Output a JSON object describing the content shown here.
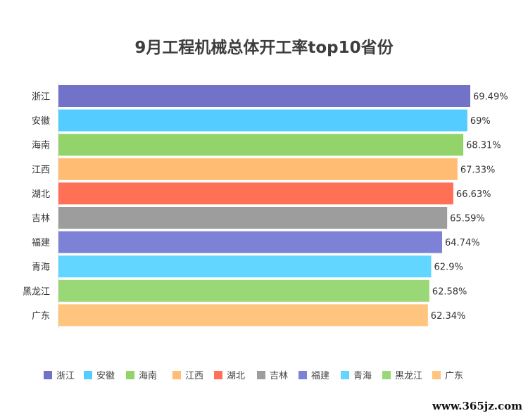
{
  "chart_data": {
    "type": "bar",
    "orientation": "horizontal",
    "title": "9月工程机械总体开工率top10省份",
    "categories": [
      "浙江",
      "安徽",
      "海南",
      "江西",
      "湖北",
      "吉林",
      "福建",
      "青海",
      "黑龙江",
      "广东"
    ],
    "values": [
      69.49,
      69,
      68.31,
      67.33,
      66.63,
      65.59,
      64.74,
      62.9,
      62.58,
      62.34
    ],
    "value_labels": [
      "69.49%",
      "69%",
      "68.31%",
      "67.33%",
      "66.63%",
      "65.59%",
      "64.74%",
      "62.9%",
      "62.58%",
      "62.34%"
    ],
    "colors": [
      "#7272c9",
      "#55ccff",
      "#92d36a",
      "#ffbc72",
      "#ff7057",
      "#9d9d9d",
      "#7e82d6",
      "#62d6ff",
      "#9ad877",
      "#ffc47e"
    ],
    "xlim": [
      0,
      69.49
    ],
    "legend_position": "bottom",
    "grid": false
  },
  "watermark": "www.365jz.com"
}
